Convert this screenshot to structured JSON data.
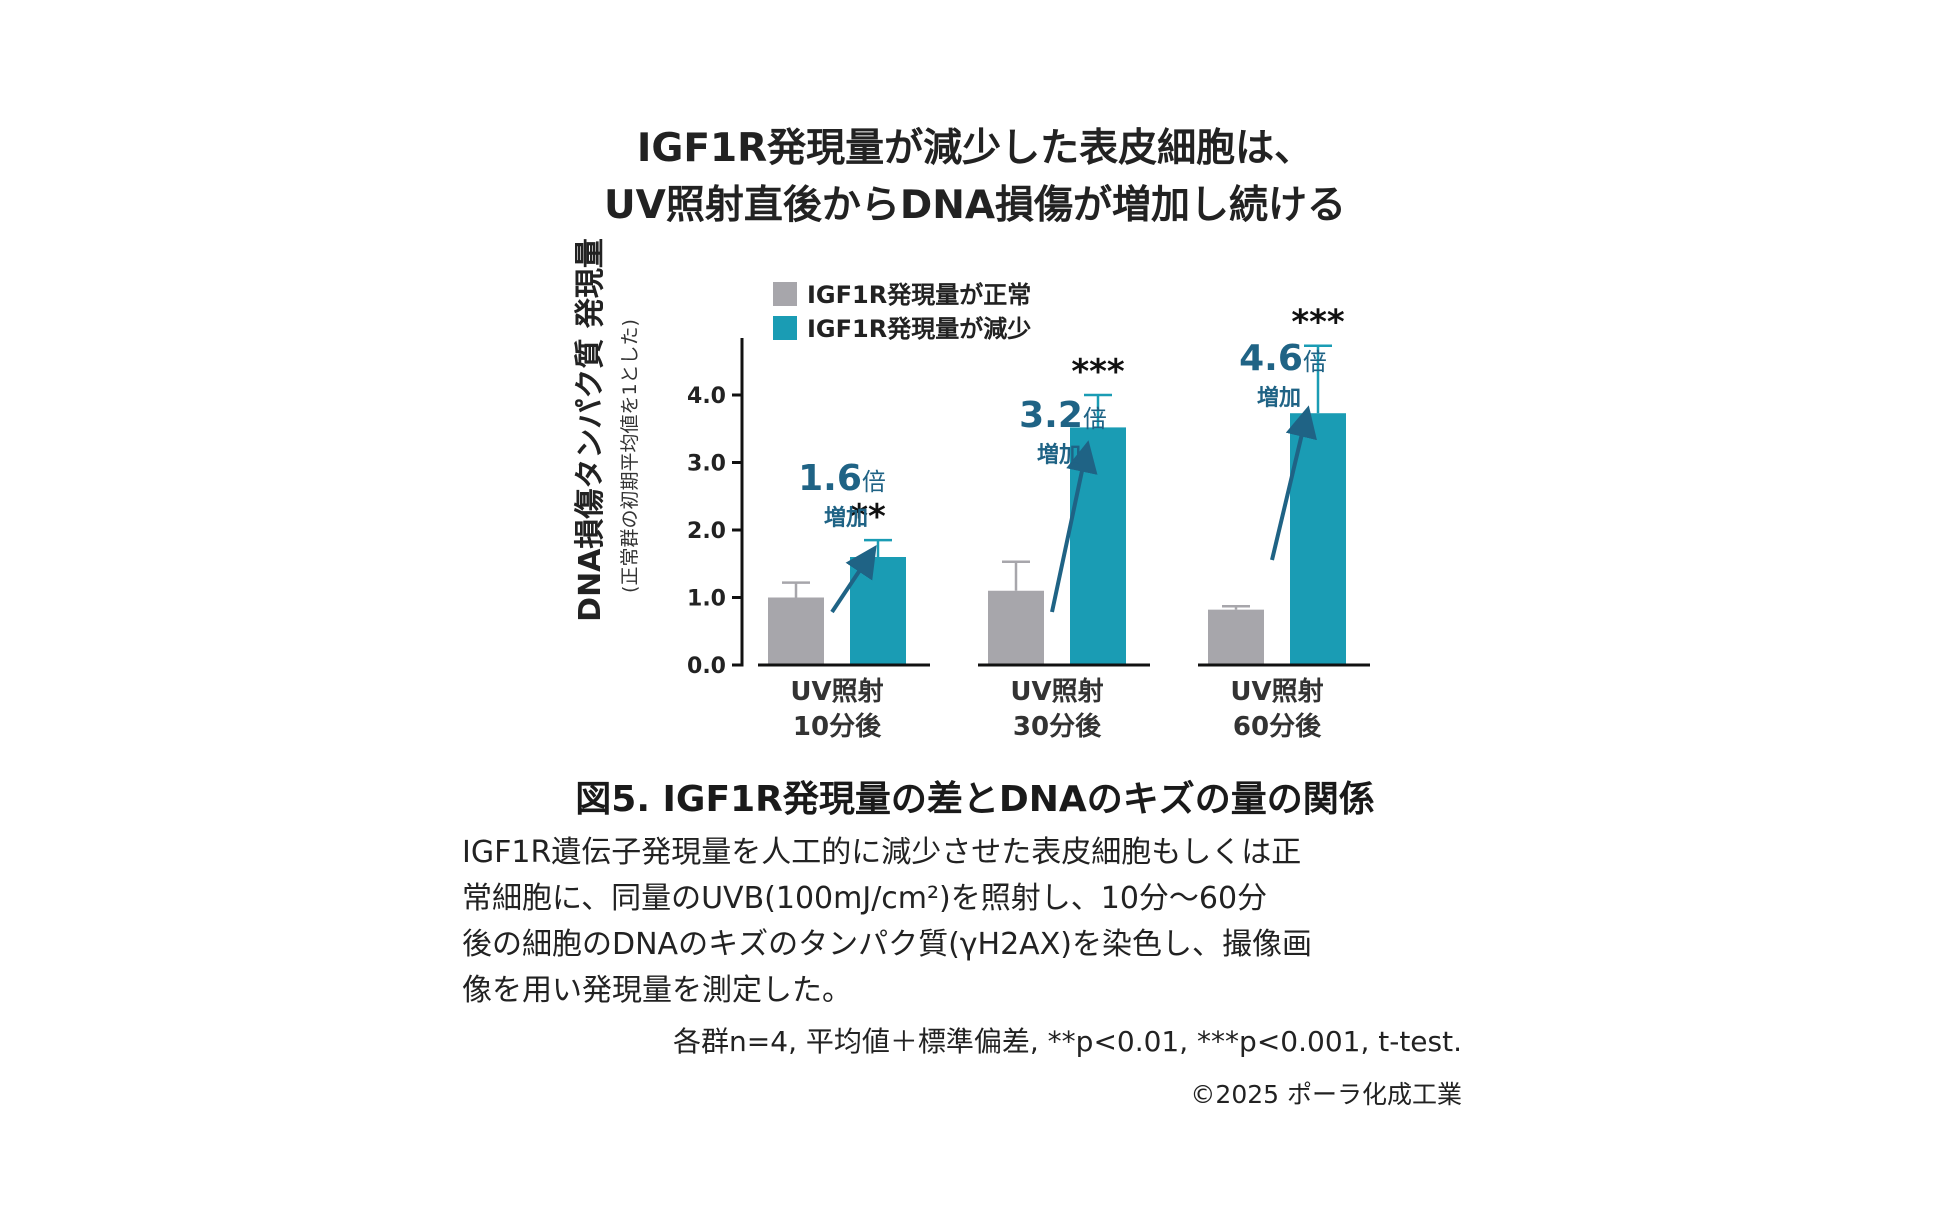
{
  "headline": {
    "line1": "IGF1R発現量が減少した表皮細胞は、",
    "line2": "UV照射直後からDNA損傷が増加し続ける"
  },
  "chart_data": {
    "type": "bar",
    "ylabel": "DNA損傷タンパク質 発現量",
    "ylabel_sub": "(正常群の初期平均値を1とした)",
    "ylim": [
      0,
      4.0
    ],
    "yticks": [
      "0.0",
      "1.0",
      "2.0",
      "3.0",
      "4.0"
    ],
    "categories": [
      {
        "line1": "UV照射",
        "line2": "10分後"
      },
      {
        "line1": "UV照射",
        "line2": "30分後"
      },
      {
        "line1": "UV照射",
        "line2": "60分後"
      }
    ],
    "series": [
      {
        "name": "IGF1R発現量が正常",
        "color": "#a7a6ab",
        "values": [
          1.0,
          1.1,
          0.82
        ],
        "errors": [
          0.22,
          0.43,
          0.05
        ]
      },
      {
        "name": "IGF1R発現量が減少",
        "color": "#1a9cb4",
        "values": [
          1.6,
          3.52,
          3.73
        ],
        "errors": [
          0.25,
          0.48,
          1.0
        ]
      }
    ],
    "significance": [
      "**",
      "***",
      "***"
    ],
    "annotations": [
      {
        "value": "1.6",
        "unit": "倍",
        "label": "増加"
      },
      {
        "value": "3.2",
        "unit": "倍",
        "label": "増加"
      },
      {
        "value": "4.6",
        "unit": "倍",
        "label": "増加"
      }
    ],
    "colors": {
      "annotation": "#1f6385"
    },
    "legend_position": "top"
  },
  "figure": {
    "title": "図5. IGF1R発現量の差とDNAのキズの量の関係",
    "description_lines": [
      "IGF1R遺伝子発現量を人工的に減少させた表皮細胞もしくは正",
      "常細胞に、同量のUVB(100mJ/cm²)を照射し、10分～60分",
      "後の細胞のDNAのキズのタンパク質(γH2AX)を染色し、撮像画",
      "像を用い発現量を測定した。"
    ],
    "stats": "各群n=4, 平均値＋標準偏差, **p<0.01, ***p<0.001, t-test.",
    "copyright": "©2025 ポーラ化成工業"
  }
}
